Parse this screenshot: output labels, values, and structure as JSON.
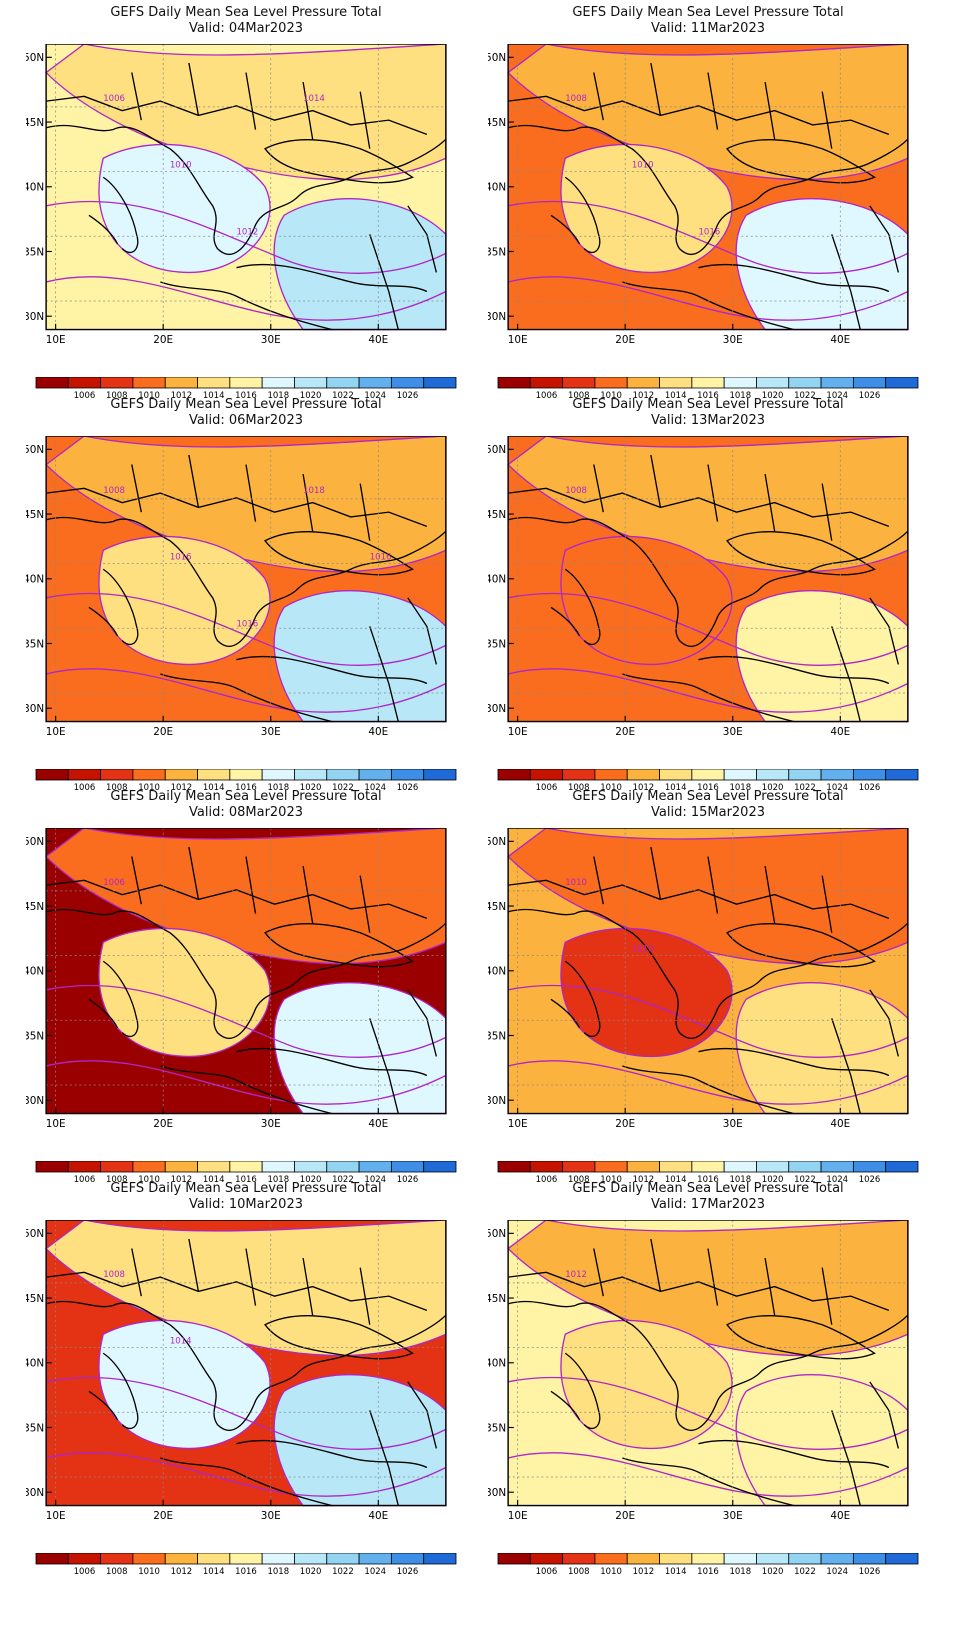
{
  "panels": [
    {
      "title": "GEFS Daily Mean Sea Level Pressure Total",
      "valid": "Valid: 04Mar2023",
      "fill": [
        "#fff3a6",
        "#ffe080",
        "#dff8ff",
        "#b8e8f7"
      ],
      "labels": [
        "1006",
        "1010",
        "1012",
        "1014"
      ]
    },
    {
      "title": "GEFS Daily Mean Sea Level Pressure Total",
      "valid": "Valid: 11Mar2023",
      "fill": [
        "#fa6d1e",
        "#fcb23e",
        "#ffe080",
        "#dff8ff"
      ],
      "labels": [
        "1008",
        "1010",
        "1016"
      ]
    },
    {
      "title": "GEFS Daily Mean Sea Level Pressure Total",
      "valid": "Valid: 06Mar2023",
      "fill": [
        "#fa6d1e",
        "#fcb23e",
        "#ffe080",
        "#b8e8f7"
      ],
      "labels": [
        "1008",
        "1016",
        "1016",
        "1018",
        "1016"
      ]
    },
    {
      "title": "GEFS Daily Mean Sea Level Pressure Total",
      "valid": "Valid: 13Mar2023",
      "fill": [
        "#fa6d1e",
        "#fcb23e",
        "#fa6d1e",
        "#fff3a6"
      ],
      "labels": [
        "1008"
      ]
    },
    {
      "title": "GEFS Daily Mean Sea Level Pressure Total",
      "valid": "Valid: 08Mar2023",
      "fill": [
        "#9b0000",
        "#fa6d1e",
        "#ffe080",
        "#dff8ff"
      ],
      "labels": [
        "1006"
      ]
    },
    {
      "title": "GEFS Daily Mean Sea Level Pressure Total",
      "valid": "Valid: 15Mar2023",
      "fill": [
        "#fcb23e",
        "#fa6d1e",
        "#e33214",
        "#ffe080"
      ],
      "labels": [
        "1010",
        "1010"
      ]
    },
    {
      "title": "GEFS Daily Mean Sea Level Pressure Total",
      "valid": "Valid: 10Mar2023",
      "fill": [
        "#e33214",
        "#ffe080",
        "#dff8ff",
        "#b8e8f7"
      ],
      "labels": [
        "1008",
        "1014"
      ]
    },
    {
      "title": "GEFS Daily Mean Sea Level Pressure Total",
      "valid": "Valid: 17Mar2023",
      "fill": [
        "#fff3a6",
        "#fcb23e",
        "#ffe080",
        "#fff3a6"
      ],
      "labels": [
        "1012"
      ]
    }
  ],
  "axes": {
    "y_ticks": [
      "50N",
      "45N",
      "40N",
      "35N",
      "30N"
    ],
    "x_ticks": [
      "10E",
      "20E",
      "30E",
      "40E"
    ]
  },
  "colorbar": {
    "colors": [
      "#9b0000",
      "#c41400",
      "#e33214",
      "#fa6d1e",
      "#fcb23e",
      "#ffe080",
      "#fff3a6",
      "#dff8ff",
      "#b8e8f7",
      "#93d4f2",
      "#62b0ee",
      "#3c8ee6",
      "#1f6ad6"
    ],
    "labels": [
      "1006",
      "1008",
      "1010",
      "1012",
      "1014",
      "1016",
      "1018",
      "1020",
      "1022",
      "1024",
      "1026"
    ]
  },
  "legend_note": ""
}
